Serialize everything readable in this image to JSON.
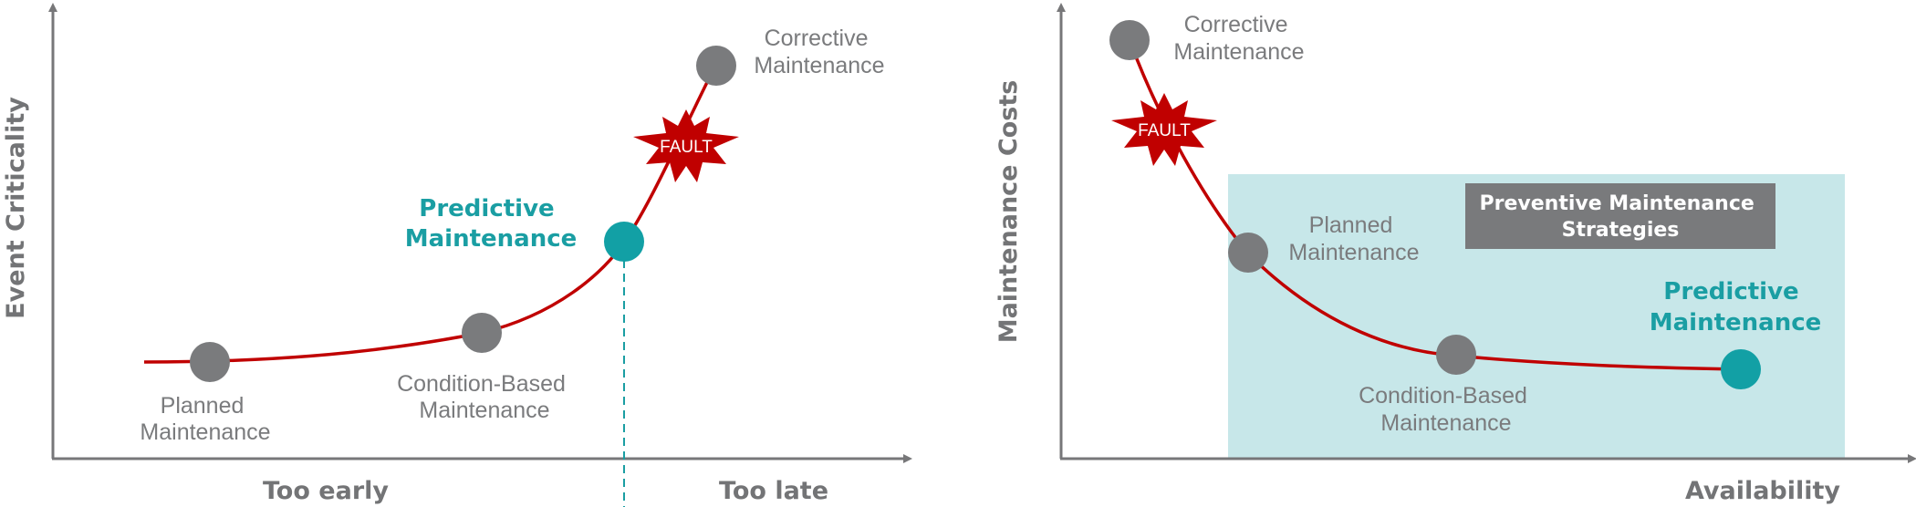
{
  "colors": {
    "axis": "#777779",
    "curve": "#c00000",
    "node_gray": "#7a7b7d",
    "node_teal": "#12a0a5",
    "highlight_bg": "#c7e7e9",
    "box_bg": "#797a7c",
    "text_gray": "#7a7b7d",
    "text_teal": "#1a9ea3",
    "fault_red": "#c00000"
  },
  "left_diagram": {
    "y_axis_label": "Event Criticality",
    "x_labels": {
      "early": "Too early",
      "late": "Too late"
    },
    "fault_label": "FAULT",
    "nodes": {
      "planned": {
        "line1": "Planned",
        "line2": "Maintenance"
      },
      "condition": {
        "line1": "Condition-Based",
        "line2": "Maintenance"
      },
      "predictive": {
        "line1": "Predictive",
        "line2": "Maintenance"
      },
      "corrective": {
        "line1": "Corrective",
        "line2": "Maintenance"
      }
    }
  },
  "right_diagram": {
    "y_axis_label": "Maintenance Costs",
    "x_axis_label": "Availability",
    "fault_label": "FAULT",
    "box": {
      "line1": "Preventive Maintenance",
      "line2": "Strategies"
    },
    "nodes": {
      "corrective": {
        "line1": "Corrective",
        "line2": "Maintenance"
      },
      "planned": {
        "line1": "Planned",
        "line2": "Maintenance"
      },
      "condition": {
        "line1": "Condition-Based",
        "line2": "Maintenance"
      },
      "predictive": {
        "line1": "Predictive",
        "line2": "Maintenance"
      }
    }
  }
}
